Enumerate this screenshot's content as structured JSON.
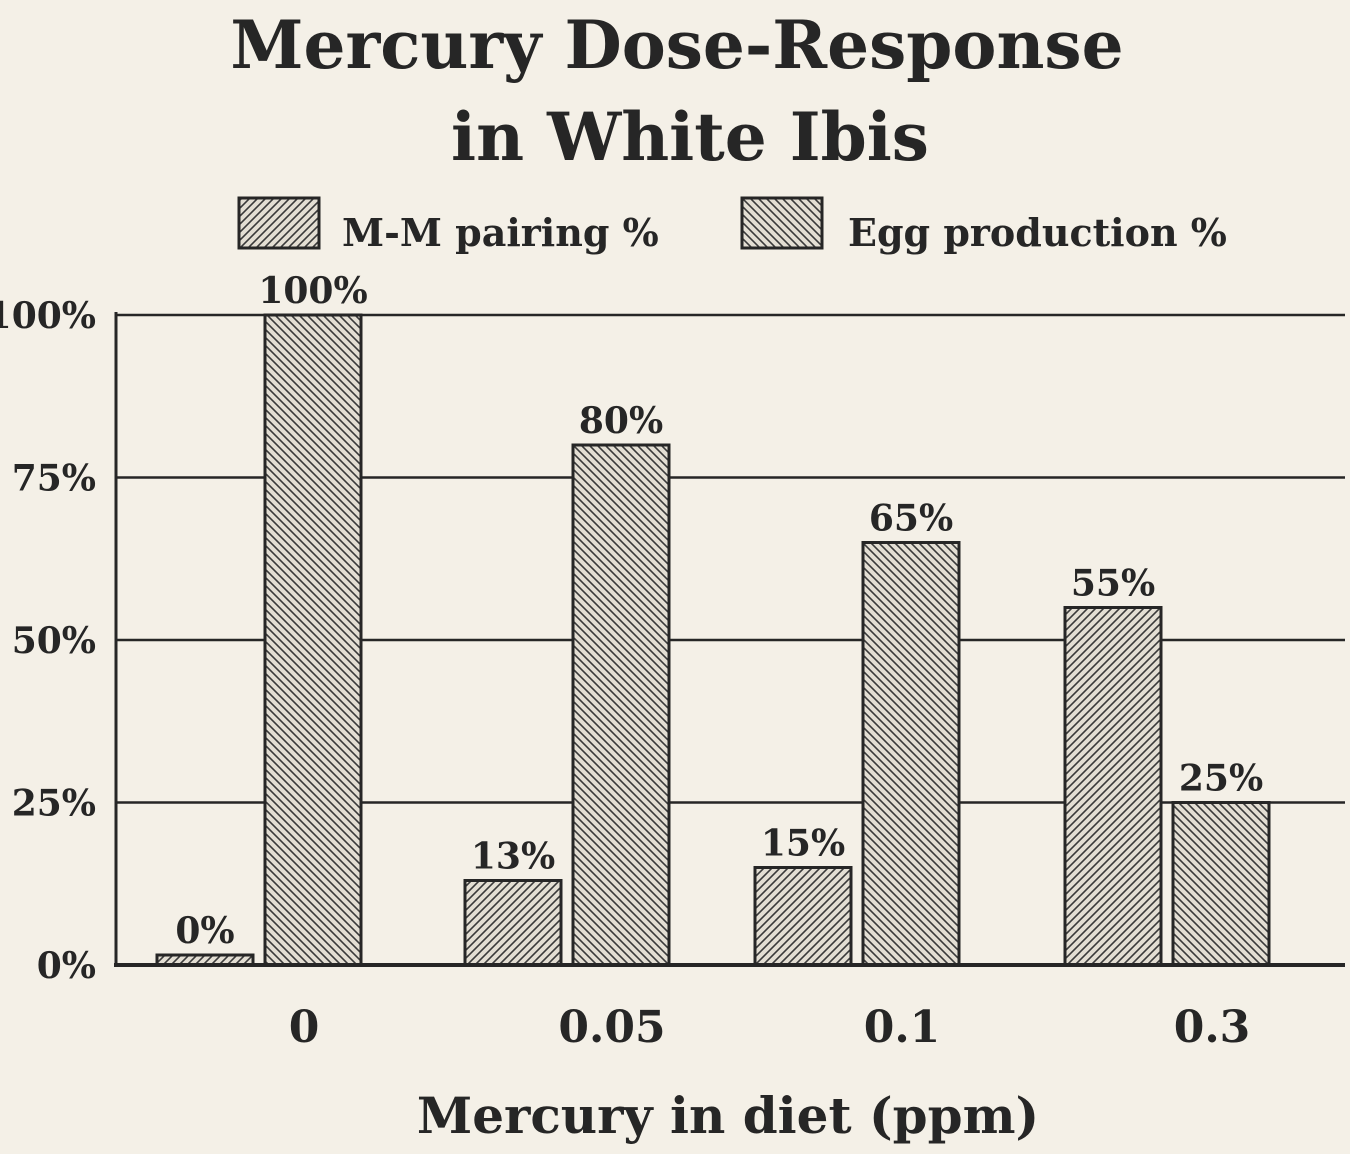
{
  "chart_data": {
    "type": "bar",
    "title_lines": [
      "Mercury Dose-Response",
      "in White Ibis"
    ],
    "xlabel": "Mercury in diet (ppm)",
    "ylabel": "",
    "ylim": [
      0,
      100
    ],
    "yticks": [
      "0%",
      "25%",
      "50%",
      "75%",
      "100%"
    ],
    "ytick_values": [
      0,
      25,
      50,
      75,
      100
    ],
    "grid": true,
    "legend_position": "top",
    "categories": [
      "0",
      "0.05",
      "0.1",
      "0.3"
    ],
    "series": [
      {
        "name": "M-M pairing %",
        "values": [
          0,
          13,
          15,
          55
        ],
        "labels": [
          "0%",
          "13%",
          "15%",
          "55%"
        ],
        "color": "#d4d0c7",
        "hatch": "forward-diagonal"
      },
      {
        "name": "Egg production %",
        "values": [
          100,
          80,
          65,
          25
        ],
        "labels": [
          "100%",
          "80%",
          "65%",
          "25%"
        ],
        "color": "#d4d0c7",
        "hatch": "backward-diagonal"
      }
    ]
  }
}
